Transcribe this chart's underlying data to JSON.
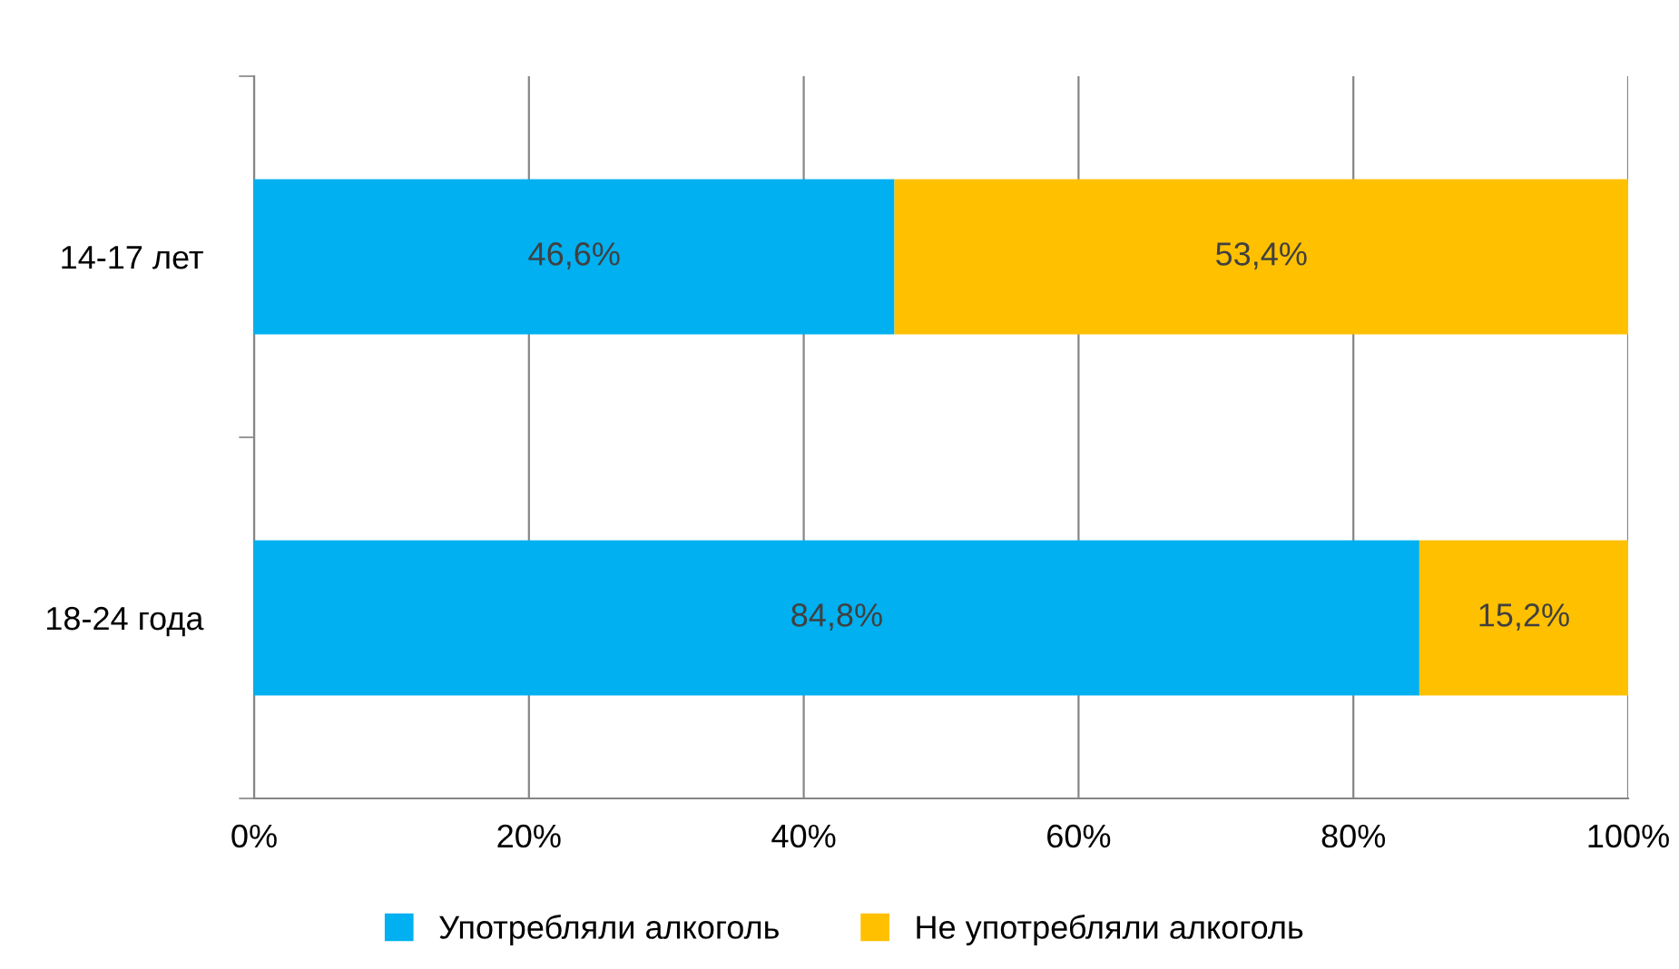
{
  "chart_data": {
    "type": "bar",
    "orientation": "horizontal",
    "stacked": true,
    "categories": [
      "14-17 лет",
      "18-24 года"
    ],
    "series": [
      {
        "name": "Употребляли алкоголь",
        "color": "#00b0f0",
        "values": [
          46.6,
          84.8
        ],
        "value_labels": [
          "46,6%",
          "84,8%"
        ]
      },
      {
        "name": "Не употребляли алкоголь",
        "color": "#ffc000",
        "values": [
          53.4,
          15.2
        ],
        "value_labels": [
          "53,4%",
          "15,2%"
        ]
      }
    ],
    "xlim": [
      0,
      100
    ],
    "xticks": [
      {
        "value": 0,
        "label": "0%"
      },
      {
        "value": 20,
        "label": "20%"
      },
      {
        "value": 40,
        "label": "40%"
      },
      {
        "value": 60,
        "label": "60%"
      },
      {
        "value": 80,
        "label": "80%"
      },
      {
        "value": 100,
        "label": "100%"
      }
    ],
    "grid": "x",
    "legend": "bottom"
  }
}
